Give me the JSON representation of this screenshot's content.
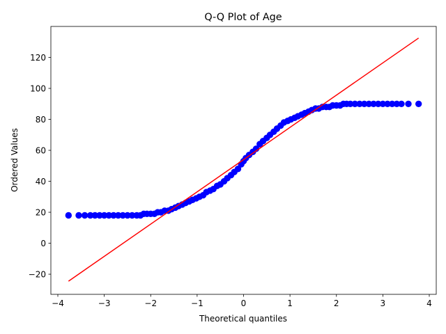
{
  "chart_data": {
    "type": "scatter",
    "title": "Q-Q Plot of Age",
    "xlabel": "Theoretical quantiles",
    "ylabel": "Ordered Values",
    "xlim": [
      -4.15,
      4.15
    ],
    "ylim": [
      -33,
      140
    ],
    "xticks": [
      -4,
      -3,
      -2,
      -1,
      0,
      1,
      2,
      3,
      4
    ],
    "xtick_labels": [
      "−4",
      "−3",
      "−2",
      "−1",
      "0",
      "1",
      "2",
      "3",
      "4"
    ],
    "yticks": [
      -20,
      0,
      20,
      40,
      60,
      80,
      100,
      120
    ],
    "ytick_labels": [
      "−20",
      "0",
      "20",
      "40",
      "60",
      "80",
      "100",
      "120"
    ],
    "grid": false,
    "series": [
      {
        "kind": "points",
        "color": "#0000ff",
        "points": [
          [
            -3.77,
            18
          ],
          [
            -3.55,
            18
          ],
          [
            -3.42,
            18
          ],
          [
            -3.3,
            18
          ],
          [
            -3.2,
            18
          ],
          [
            -3.1,
            18
          ],
          [
            -3.0,
            18
          ],
          [
            -2.9,
            18
          ],
          [
            -2.8,
            18
          ],
          [
            -2.7,
            18
          ],
          [
            -2.6,
            18
          ],
          [
            -2.5,
            18
          ],
          [
            -2.4,
            18
          ],
          [
            -2.3,
            18
          ],
          [
            -2.22,
            18
          ],
          [
            -2.15,
            19
          ],
          [
            -2.08,
            19
          ],
          [
            -2.0,
            19
          ],
          [
            -1.92,
            19
          ],
          [
            -1.85,
            20
          ],
          [
            -1.78,
            20
          ],
          [
            -1.7,
            21
          ],
          [
            -1.62,
            21
          ],
          [
            -1.55,
            22
          ],
          [
            -1.47,
            23
          ],
          [
            -1.4,
            24
          ],
          [
            -1.32,
            25
          ],
          [
            -1.25,
            26
          ],
          [
            -1.17,
            27
          ],
          [
            -1.1,
            28
          ],
          [
            -1.02,
            29
          ],
          [
            -0.95,
            30
          ],
          [
            -0.87,
            31
          ],
          [
            -0.8,
            33
          ],
          [
            -0.72,
            34
          ],
          [
            -0.65,
            35
          ],
          [
            -0.57,
            37
          ],
          [
            -0.5,
            38
          ],
          [
            -0.42,
            40
          ],
          [
            -0.35,
            42
          ],
          [
            -0.27,
            44
          ],
          [
            -0.2,
            46
          ],
          [
            -0.12,
            48
          ],
          [
            -0.05,
            51
          ],
          [
            0.0,
            53
          ],
          [
            0.05,
            55
          ],
          [
            0.12,
            57
          ],
          [
            0.2,
            59
          ],
          [
            0.27,
            61
          ],
          [
            0.35,
            64
          ],
          [
            0.42,
            66
          ],
          [
            0.5,
            68
          ],
          [
            0.57,
            70
          ],
          [
            0.65,
            72
          ],
          [
            0.72,
            74
          ],
          [
            0.8,
            76
          ],
          [
            0.87,
            78
          ],
          [
            0.95,
            79
          ],
          [
            1.02,
            80
          ],
          [
            1.1,
            81
          ],
          [
            1.17,
            82
          ],
          [
            1.25,
            83
          ],
          [
            1.32,
            84
          ],
          [
            1.4,
            85
          ],
          [
            1.47,
            86
          ],
          [
            1.55,
            87
          ],
          [
            1.62,
            87
          ],
          [
            1.7,
            88
          ],
          [
            1.78,
            88
          ],
          [
            1.85,
            88
          ],
          [
            1.92,
            89
          ],
          [
            2.0,
            89
          ],
          [
            2.08,
            89
          ],
          [
            2.15,
            90
          ],
          [
            2.22,
            90
          ],
          [
            2.3,
            90
          ],
          [
            2.4,
            90
          ],
          [
            2.5,
            90
          ],
          [
            2.6,
            90
          ],
          [
            2.7,
            90
          ],
          [
            2.8,
            90
          ],
          [
            2.9,
            90
          ],
          [
            3.0,
            90
          ],
          [
            3.1,
            90
          ],
          [
            3.2,
            90
          ],
          [
            3.3,
            90
          ],
          [
            3.4,
            90
          ],
          [
            3.55,
            90
          ],
          [
            3.77,
            90
          ]
        ]
      },
      {
        "kind": "line",
        "color": "#ff0000",
        "points": [
          [
            -3.77,
            -24.5
          ],
          [
            3.77,
            132.5
          ]
        ]
      }
    ]
  }
}
